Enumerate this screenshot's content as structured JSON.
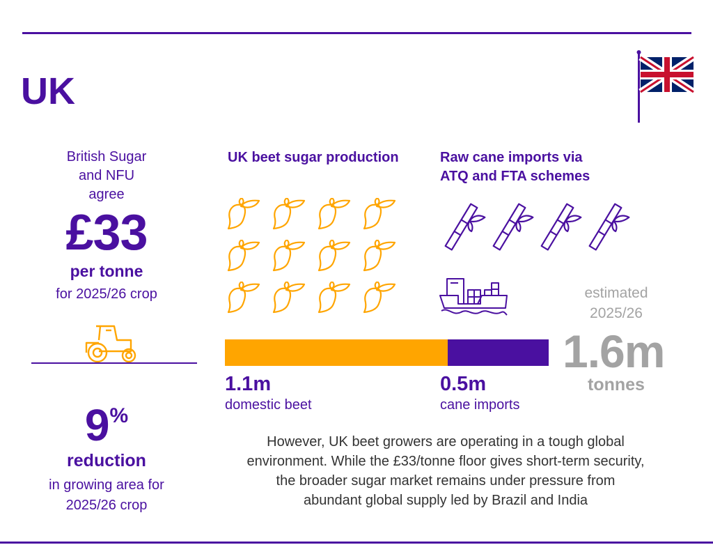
{
  "title": "UK",
  "colors": {
    "purple": "#4a10a0",
    "orange": "#ffa500",
    "gray": "#a3a3a3",
    "flag_blue": "#012169",
    "flag_red": "#c8102e"
  },
  "icons": [
    "uk-flag-icon",
    "tractor-icon",
    "sugar-beet-icon",
    "sugar-cane-icon",
    "cargo-ship-icon"
  ],
  "agreement": {
    "line1": "British Sugar",
    "line2": "and NFU",
    "line3": "agree",
    "price": "£33",
    "unit": "per tonne",
    "crop": "for 2025/26 crop"
  },
  "reduction": {
    "value": "9",
    "percent": "%",
    "label": "reduction",
    "line1": "in growing area for",
    "line2": "2025/26 crop"
  },
  "beet": {
    "heading": "UK beet sugar production",
    "icon_count": 12,
    "value": "1.1m",
    "label": "domestic beet",
    "amount": 1.1
  },
  "cane": {
    "heading_line1": "Raw cane imports via",
    "heading_line2": "ATQ and FTA schemes",
    "icon_count": 4,
    "value": "0.5m",
    "label": "cane imports",
    "amount": 0.5
  },
  "total": {
    "line1": "estimated",
    "line2": "2025/26",
    "value": "1.6m",
    "unit": "tonnes",
    "amount": 1.6
  },
  "footer_text": {
    "line1": "However, UK beet growers are operating in a tough global",
    "line2": "environment. While the £33/tonne floor gives short-term security,",
    "line3": "the broader sugar market remains under pressure from",
    "line4": "abundant global supply led by Brazil and India"
  }
}
